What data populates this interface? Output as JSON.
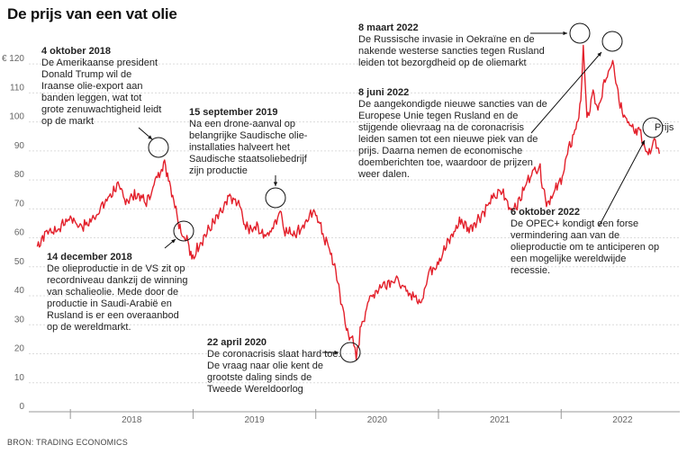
{
  "header": {
    "title": "De prijs van een vat olie"
  },
  "footer": {
    "source": "BRON: TRADING ECONOMICS"
  },
  "chart_data": {
    "type": "line",
    "title": "De prijs van een vat olie",
    "series": [
      {
        "name": "Prijs",
        "color": "#e3202b"
      }
    ],
    "y_ticks": [
      "0",
      "10",
      "20",
      "30",
      "40",
      "50",
      "60",
      "70",
      "80",
      "90",
      "100",
      "110",
      "€ 120"
    ],
    "ylim": [
      0,
      125
    ],
    "x_ticks": [
      "2018",
      "2019",
      "2020",
      "2021",
      "2022"
    ],
    "xlim": [
      2017.72,
      2022.82
    ],
    "grid": true,
    "anchors": [
      [
        2017.73,
        57
      ],
      [
        2017.8,
        62
      ],
      [
        2017.9,
        63
      ],
      [
        2018.0,
        67
      ],
      [
        2018.08,
        64
      ],
      [
        2018.15,
        65
      ],
      [
        2018.28,
        72
      ],
      [
        2018.38,
        78
      ],
      [
        2018.45,
        73
      ],
      [
        2018.55,
        75
      ],
      [
        2018.62,
        72
      ],
      [
        2018.7,
        80
      ],
      [
        2018.76,
        86
      ],
      [
        2018.8,
        81
      ],
      [
        2018.86,
        70
      ],
      [
        2018.91,
        61
      ],
      [
        2018.95,
        60
      ],
      [
        2018.99,
        52
      ],
      [
        2019.05,
        58
      ],
      [
        2019.15,
        64
      ],
      [
        2019.25,
        70
      ],
      [
        2019.3,
        74
      ],
      [
        2019.38,
        71
      ],
      [
        2019.43,
        63
      ],
      [
        2019.52,
        64
      ],
      [
        2019.6,
        60
      ],
      [
        2019.68,
        66
      ],
      [
        2019.71,
        70
      ],
      [
        2019.75,
        62
      ],
      [
        2019.85,
        62
      ],
      [
        2019.95,
        67
      ],
      [
        2020.0,
        69
      ],
      [
        2020.05,
        62
      ],
      [
        2020.12,
        55
      ],
      [
        2020.18,
        45
      ],
      [
        2020.22,
        35
      ],
      [
        2020.25,
        28
      ],
      [
        2020.29,
        26
      ],
      [
        2020.31,
        22
      ],
      [
        2020.33,
        18
      ],
      [
        2020.37,
        30
      ],
      [
        2020.45,
        40
      ],
      [
        2020.55,
        44
      ],
      [
        2020.65,
        46
      ],
      [
        2020.72,
        42
      ],
      [
        2020.8,
        40
      ],
      [
        2020.85,
        37
      ],
      [
        2020.92,
        48
      ],
      [
        2021.0,
        52
      ],
      [
        2021.1,
        60
      ],
      [
        2021.18,
        66
      ],
      [
        2021.25,
        63
      ],
      [
        2021.35,
        68
      ],
      [
        2021.45,
        74
      ],
      [
        2021.52,
        76
      ],
      [
        2021.58,
        70
      ],
      [
        2021.65,
        72
      ],
      [
        2021.75,
        82
      ],
      [
        2021.82,
        85
      ],
      [
        2021.88,
        72
      ],
      [
        2021.95,
        76
      ],
      [
        2022.0,
        80
      ],
      [
        2022.06,
        90
      ],
      [
        2022.12,
        98
      ],
      [
        2022.16,
        106
      ],
      [
        2022.18,
        127
      ],
      [
        2022.21,
        100
      ],
      [
        2022.26,
        110
      ],
      [
        2022.3,
        103
      ],
      [
        2022.35,
        113
      ],
      [
        2022.42,
        122
      ],
      [
        2022.48,
        106
      ],
      [
        2022.55,
        100
      ],
      [
        2022.6,
        96
      ],
      [
        2022.64,
        98
      ],
      [
        2022.68,
        91
      ],
      [
        2022.71,
        88
      ],
      [
        2022.76,
        93
      ],
      [
        2022.8,
        89
      ]
    ]
  },
  "annotations": [
    {
      "date": "4 oktober 2018",
      "lines": [
        "De Amerikaanse president",
        "Donald Trump wil de",
        "Iraanse olie-export aan",
        "banden leggen, wat tot",
        "grote zenuwachtigheid leidt",
        "op de markt"
      ]
    },
    {
      "date": "14 december 2018",
      "lines": [
        "De olieproductie in de VS zit op",
        "recordniveau dankzij de winning",
        "van schalieolie. Mede door de",
        "productie in Saudi-Arabië en",
        "Rusland is er een overaanbod",
        "op de wereldmarkt."
      ]
    },
    {
      "date": "15 september 2019",
      "lines": [
        "Na een drone-aanval op",
        "belangrijke Saudische olie-",
        "installaties halveert het",
        "Saudische staatsoliebedrijf",
        "zijn productie"
      ]
    },
    {
      "date": "22 april 2020",
      "lines": [
        "De coronacrisis slaat hard toe.",
        "De vraag naar olie kent de",
        "grootste daling sinds de",
        "Tweede Wereldoorlog"
      ]
    },
    {
      "date": "8 maart 2022",
      "lines": [
        "De Russische invasie in Oekraïne en de",
        "nakende westerse sancties tegen Rusland",
        "leiden tot bezorgdheid op de oliemarkt"
      ]
    },
    {
      "date": "8 juni 2022",
      "lines": [
        "De aangekondigde nieuwe sancties van de",
        "Europese Unie tegen Rusland en de",
        "stijgende olievraag na de coronacrisis",
        "leiden samen tot een nieuwe piek van de",
        "prijs. Daarna nemen de economische",
        "doemberichten toe, waardoor de prijzen",
        "weer dalen."
      ]
    },
    {
      "date": "6 oktober 2022",
      "lines": [
        "De OPEC+ kondigt een forse",
        "vermindering aan van de",
        "olieproductie om te anticiperen op",
        "een mogelijke wereldwijde",
        "recessie."
      ]
    }
  ],
  "series_label": "Prijs"
}
